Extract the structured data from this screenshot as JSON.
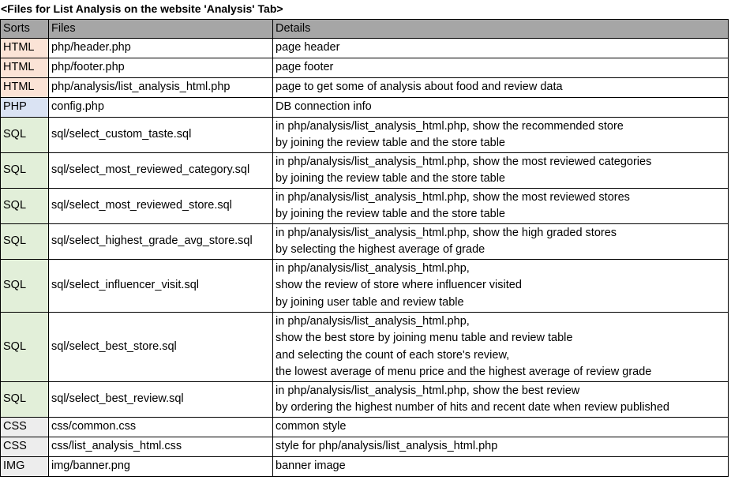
{
  "title": "<Files for List Analysis on the website 'Analysis' Tab>",
  "headers": {
    "sorts": "Sorts",
    "files": "Files",
    "details": "Details"
  },
  "sort_colors": {
    "HTML": "#fbe3d6",
    "PHP": "#dae3f3",
    "SQL": "#e2efd9",
    "CSS": "#ededed",
    "IMG": "#ededed"
  },
  "rows": [
    {
      "sort": "HTML",
      "file": "php/header.php",
      "details": [
        "page header"
      ]
    },
    {
      "sort": "HTML",
      "file": "php/footer.php",
      "details": [
        "page footer"
      ]
    },
    {
      "sort": "HTML",
      "file": "php/analysis/list_analysis_html.php",
      "details": [
        "page to get some of analysis about food and review data"
      ]
    },
    {
      "sort": "PHP",
      "file": "config.php",
      "details": [
        "DB connection info"
      ]
    },
    {
      "sort": "SQL",
      "file": "sql/select_custom_taste.sql",
      "details": [
        "in php/analysis/list_analysis_html.php, show the recommended store",
        "by joining the review table and the store table"
      ]
    },
    {
      "sort": "SQL",
      "file": "sql/select_most_reviewed_category.sql",
      "details": [
        "in php/analysis/list_analysis_html.php, show the most reviewed categories",
        "by joining the review table and the store table"
      ]
    },
    {
      "sort": "SQL",
      "file": "sql/select_most_reviewed_store.sql",
      "details": [
        "in php/analysis/list_analysis_html.php, show the most reviewed stores",
        "by joining the review table and the store table"
      ]
    },
    {
      "sort": "SQL",
      "file": "sql/select_highest_grade_avg_store.sql",
      "details": [
        "in php/analysis/list_analysis_html.php, show the high graded stores",
        "by selecting the highest average of grade"
      ]
    },
    {
      "sort": "SQL",
      "file": "sql/select_influencer_visit.sql",
      "details": [
        "in php/analysis/list_analysis_html.php,",
        "show the review of store where influencer visited",
        "by joining user table and review table"
      ]
    },
    {
      "sort": "SQL",
      "file": "sql/select_best_store.sql",
      "details": [
        "in php/analysis/list_analysis_html.php,",
        "show the best store by joining menu table and review table",
        "and selecting the count of each store's review,",
        "the lowest average of menu price and the highest average of review grade"
      ]
    },
    {
      "sort": "SQL",
      "file": "sql/select_best_review.sql",
      "details": [
        "in php/analysis/list_analysis_html.php, show the best review",
        "by ordering the highest number of hits and recent date when review published"
      ]
    },
    {
      "sort": "CSS",
      "file": "css/common.css",
      "details": [
        "common style"
      ]
    },
    {
      "sort": "CSS",
      "file": "css/list_analysis_html.css",
      "details": [
        "style for php/analysis/list_analysis_html.php"
      ]
    },
    {
      "sort": "IMG",
      "file": "img/banner.png",
      "details": [
        "banner image"
      ]
    }
  ]
}
